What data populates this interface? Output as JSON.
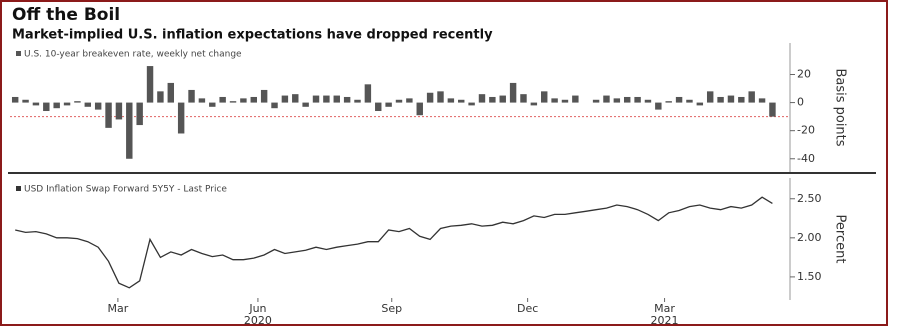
{
  "header": {
    "title": "Off the Boil",
    "subtitle": "Market-implied U.S. inflation expectations have dropped recently"
  },
  "chart_data": [
    {
      "type": "bar",
      "series": [
        {
          "name": "U.S. 10-year breakeven rate, weekly net change",
          "color": "#555555",
          "values": [
            4,
            2,
            -2,
            -6,
            -4,
            -2,
            1,
            -3,
            -5,
            -18,
            -12,
            -40,
            -16,
            26,
            8,
            14,
            -22,
            9,
            3,
            -3,
            4,
            1,
            3,
            4,
            9,
            -4,
            5,
            6,
            -3,
            5,
            5,
            5,
            4,
            2,
            13,
            -6,
            -3,
            2,
            3,
            -9,
            7,
            8,
            3,
            2,
            -2,
            6,
            4,
            5,
            14,
            6,
            -2,
            8,
            3,
            2,
            5,
            0,
            2,
            5,
            3,
            4,
            4,
            2,
            -5,
            1,
            4,
            2,
            -2,
            8,
            4,
            5,
            4,
            8,
            3,
            -10
          ]
        }
      ],
      "y_label": "Basis points",
      "xlim": [
        -0.5,
        74.5
      ],
      "ylim": [
        -48,
        41
      ],
      "yticks": [
        20,
        0,
        -20,
        -40
      ],
      "reference_line": {
        "value": -10,
        "color": "#e06060"
      }
    },
    {
      "type": "line",
      "series": [
        {
          "name": "USD Inflation Swap Forward 5Y5Y - Last Price",
          "color": "#333333",
          "values": [
            2.1,
            2.07,
            2.08,
            2.05,
            2.0,
            2.0,
            1.99,
            1.95,
            1.88,
            1.7,
            1.42,
            1.36,
            1.45,
            1.98,
            1.75,
            1.82,
            1.78,
            1.85,
            1.8,
            1.76,
            1.78,
            1.72,
            1.72,
            1.74,
            1.78,
            1.85,
            1.8,
            1.82,
            1.84,
            1.88,
            1.85,
            1.88,
            1.9,
            1.92,
            1.95,
            1.95,
            2.1,
            2.08,
            2.12,
            2.02,
            1.98,
            2.12,
            2.15,
            2.16,
            2.18,
            2.15,
            2.16,
            2.2,
            2.18,
            2.22,
            2.28,
            2.26,
            2.3,
            2.3,
            2.32,
            2.34,
            2.36,
            2.38,
            2.42,
            2.4,
            2.36,
            2.3,
            2.22,
            2.32,
            2.35,
            2.4,
            2.42,
            2.38,
            2.36,
            2.4,
            2.38,
            2.42,
            2.52,
            2.44
          ]
        }
      ],
      "y_label": "Percent",
      "xlim": [
        -0.5,
        74.5
      ],
      "xticks": [
        {
          "value": 9.9,
          "label": "Mar"
        },
        {
          "value": 23.4,
          "label": "Jun"
        },
        {
          "value": 36.3,
          "label": "Sep"
        },
        {
          "value": 49.4,
          "label": "Dec"
        },
        {
          "value": 62.6,
          "label": "Mar"
        }
      ],
      "year_labels": [
        {
          "value": 23.4,
          "label": "2020"
        },
        {
          "value": 62.6,
          "label": "2021"
        }
      ],
      "ylim": [
        1.23,
        2.74
      ],
      "yticks": [
        {
          "value": 1.5,
          "label": "1.50"
        },
        {
          "value": 2.0,
          "label": "2.00"
        },
        {
          "value": 2.5,
          "label": "2.50"
        }
      ]
    }
  ]
}
